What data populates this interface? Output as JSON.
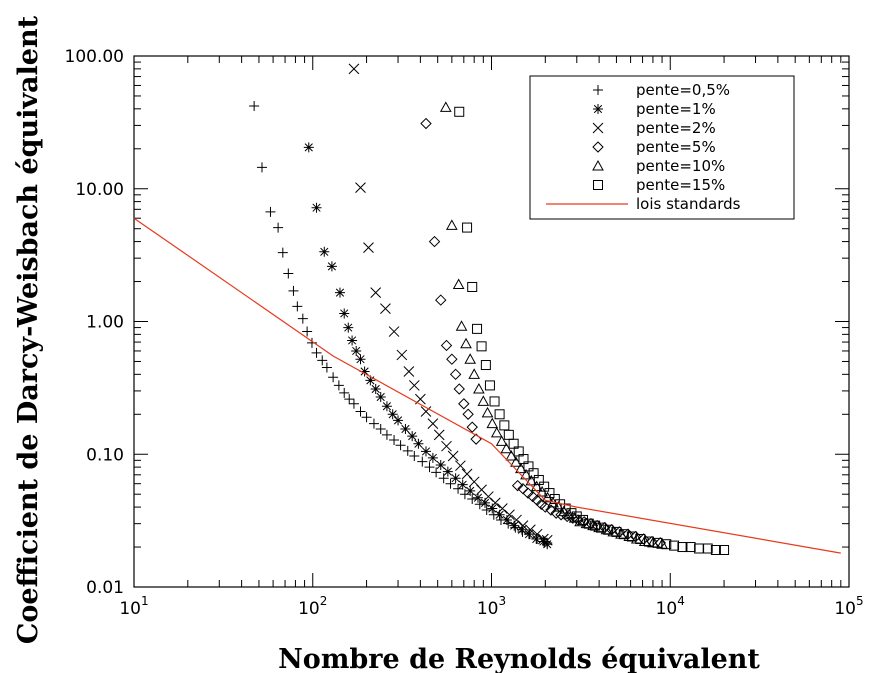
{
  "chart_data": {
    "type": "scatter",
    "xscale": "log",
    "yscale": "log",
    "xlim": [
      10,
      100000
    ],
    "ylim": [
      0.01,
      100
    ],
    "xlabel": "Nombre de Reynolds équivalent",
    "ylabel": "Coefficient de Darcy-Weisbach équivalent",
    "xticks": [
      10,
      100,
      1000,
      10000,
      100000
    ],
    "xtick_labels": [
      {
        "base": "10",
        "exp": "1"
      },
      {
        "base": "10",
        "exp": "2"
      },
      {
        "base": "10",
        "exp": "3"
      },
      {
        "base": "10",
        "exp": "4"
      },
      {
        "base": "10",
        "exp": "5"
      }
    ],
    "yticks": [
      0.01,
      0.1,
      1,
      10,
      100
    ],
    "ytick_labels": [
      "0.01",
      "0.10",
      "1.00",
      "10.00",
      "100.00"
    ],
    "legend_position": "top-right",
    "series": [
      {
        "name": "pente=0,5%",
        "marker": "plus",
        "color": "#000000",
        "points": [
          [
            47,
            42
          ],
          [
            52,
            14.5
          ],
          [
            58,
            6.7
          ],
          [
            64,
            5.1
          ],
          [
            68,
            3.3
          ],
          [
            73,
            2.3
          ],
          [
            78,
            1.7
          ],
          [
            82,
            1.3
          ],
          [
            88,
            1.05
          ],
          [
            93,
            0.84
          ],
          [
            99,
            0.69
          ],
          [
            105,
            0.58
          ],
          [
            113,
            0.51
          ],
          [
            120,
            0.45
          ],
          [
            130,
            0.38
          ],
          [
            140,
            0.33
          ],
          [
            150,
            0.29
          ],
          [
            160,
            0.26
          ],
          [
            170,
            0.24
          ],
          [
            185,
            0.21
          ],
          [
            200,
            0.19
          ],
          [
            220,
            0.17
          ],
          [
            240,
            0.155
          ],
          [
            260,
            0.14
          ],
          [
            285,
            0.128
          ],
          [
            310,
            0.117
          ],
          [
            340,
            0.106
          ],
          [
            370,
            0.097
          ],
          [
            410,
            0.088
          ],
          [
            450,
            0.08
          ],
          [
            490,
            0.073
          ],
          [
            540,
            0.066
          ],
          [
            590,
            0.06
          ],
          [
            650,
            0.055
          ],
          [
            710,
            0.05
          ],
          [
            780,
            0.046
          ],
          [
            860,
            0.042
          ],
          [
            940,
            0.038
          ],
          [
            1030,
            0.035
          ],
          [
            1130,
            0.032
          ],
          [
            1240,
            0.03
          ],
          [
            1360,
            0.028
          ],
          [
            1490,
            0.026
          ],
          [
            1640,
            0.025
          ],
          [
            1800,
            0.023
          ],
          [
            1980,
            0.022
          ],
          [
            2050,
            0.0215
          ]
        ]
      },
      {
        "name": "pente=1%",
        "marker": "asterisk",
        "color": "#000000",
        "points": [
          [
            95,
            20.5
          ],
          [
            105,
            7.2
          ],
          [
            116,
            3.35
          ],
          [
            128,
            2.6
          ],
          [
            142,
            1.65
          ],
          [
            150,
            1.15
          ],
          [
            158,
            0.9
          ],
          [
            166,
            0.72
          ],
          [
            175,
            0.6
          ],
          [
            185,
            0.52
          ],
          [
            195,
            0.42
          ],
          [
            210,
            0.36
          ],
          [
            225,
            0.31
          ],
          [
            240,
            0.27
          ],
          [
            260,
            0.23
          ],
          [
            280,
            0.2
          ],
          [
            300,
            0.18
          ],
          [
            330,
            0.155
          ],
          [
            360,
            0.137
          ],
          [
            390,
            0.12
          ],
          [
            430,
            0.105
          ],
          [
            470,
            0.094
          ],
          [
            520,
            0.083
          ],
          [
            570,
            0.074
          ],
          [
            630,
            0.066
          ],
          [
            690,
            0.059
          ],
          [
            760,
            0.053
          ],
          [
            840,
            0.047
          ],
          [
            920,
            0.043
          ],
          [
            1010,
            0.039
          ],
          [
            1110,
            0.035
          ],
          [
            1220,
            0.032
          ],
          [
            1340,
            0.029
          ],
          [
            1480,
            0.027
          ],
          [
            1620,
            0.025
          ],
          [
            1780,
            0.023
          ],
          [
            1950,
            0.022
          ],
          [
            2050,
            0.021
          ]
        ]
      },
      {
        "name": "pente=2%",
        "marker": "cross",
        "color": "#000000",
        "points": [
          [
            170,
            80
          ],
          [
            185,
            10.2
          ],
          [
            205,
            3.6
          ],
          [
            225,
            1.65
          ],
          [
            255,
            1.25
          ],
          [
            285,
            0.84
          ],
          [
            315,
            0.56
          ],
          [
            345,
            0.42
          ],
          [
            370,
            0.33
          ],
          [
            400,
            0.26
          ],
          [
            430,
            0.21
          ],
          [
            470,
            0.17
          ],
          [
            510,
            0.14
          ],
          [
            560,
            0.115
          ],
          [
            610,
            0.097
          ],
          [
            670,
            0.082
          ],
          [
            730,
            0.071
          ],
          [
            800,
            0.062
          ],
          [
            880,
            0.054
          ],
          [
            960,
            0.048
          ],
          [
            1050,
            0.043
          ],
          [
            1150,
            0.039
          ],
          [
            1260,
            0.035
          ],
          [
            1380,
            0.032
          ],
          [
            1500,
            0.029
          ],
          [
            1650,
            0.027
          ],
          [
            1800,
            0.025
          ],
          [
            1950,
            0.023
          ],
          [
            2050,
            0.0225
          ]
        ]
      },
      {
        "name": "pente=5%",
        "marker": "diamond",
        "color": "#000000",
        "points": [
          [
            430,
            31
          ],
          [
            480,
            4.0
          ],
          [
            520,
            1.45
          ],
          [
            560,
            0.66
          ],
          [
            600,
            0.52
          ],
          [
            630,
            0.4
          ],
          [
            660,
            0.31
          ],
          [
            700,
            0.24
          ],
          [
            740,
            0.2
          ],
          [
            780,
            0.16
          ],
          [
            820,
            0.13
          ],
          [
            1400,
            0.058
          ],
          [
            1500,
            0.055
          ],
          [
            1600,
            0.051
          ],
          [
            1700,
            0.048
          ],
          [
            1800,
            0.045
          ],
          [
            1900,
            0.042
          ],
          [
            2000,
            0.04
          ],
          [
            2150,
            0.038
          ],
          [
            2300,
            0.036
          ],
          [
            2450,
            0.035
          ],
          [
            2650,
            0.034
          ],
          [
            2850,
            0.033
          ],
          [
            3050,
            0.032
          ],
          [
            3300,
            0.031
          ],
          [
            3600,
            0.03
          ],
          [
            3900,
            0.029
          ],
          [
            4300,
            0.028
          ],
          [
            4700,
            0.027
          ],
          [
            5200,
            0.026
          ],
          [
            5800,
            0.025
          ],
          [
            6400,
            0.024
          ],
          [
            7100,
            0.023
          ],
          [
            7900,
            0.022
          ],
          [
            8800,
            0.0215
          ]
        ]
      },
      {
        "name": "pente=10%",
        "marker": "triangle",
        "color": "#000000",
        "points": [
          [
            555,
            41
          ],
          [
            600,
            5.3
          ],
          [
            655,
            1.9
          ],
          [
            680,
            0.92
          ],
          [
            720,
            0.68
          ],
          [
            760,
            0.52
          ],
          [
            800,
            0.4
          ],
          [
            850,
            0.31
          ],
          [
            900,
            0.25
          ],
          [
            950,
            0.205
          ],
          [
            1010,
            0.17
          ],
          [
            1070,
            0.145
          ],
          [
            1140,
            0.125
          ],
          [
            1210,
            0.11
          ],
          [
            1290,
            0.097
          ],
          [
            1370,
            0.087
          ],
          [
            1460,
            0.078
          ],
          [
            1560,
            0.07
          ],
          [
            1670,
            0.063
          ],
          [
            1790,
            0.057
          ],
          [
            1920,
            0.052
          ],
          [
            2060,
            0.047
          ],
          [
            2210,
            0.043
          ],
          [
            2370,
            0.04
          ],
          [
            2540,
            0.037
          ],
          [
            2720,
            0.035
          ],
          [
            2920,
            0.033
          ],
          [
            3130,
            0.031
          ],
          [
            3400,
            0.03
          ],
          [
            3700,
            0.029
          ],
          [
            4000,
            0.028
          ],
          [
            4400,
            0.027
          ],
          [
            4800,
            0.026
          ],
          [
            5300,
            0.025
          ],
          [
            5900,
            0.024
          ],
          [
            6500,
            0.023
          ],
          [
            7200,
            0.022
          ],
          [
            8000,
            0.0215
          ],
          [
            9000,
            0.021
          ]
        ]
      },
      {
        "name": "pente=15%",
        "marker": "square",
        "color": "#000000",
        "points": [
          [
            660,
            38
          ],
          [
            730,
            5.1
          ],
          [
            780,
            1.82
          ],
          [
            830,
            0.88
          ],
          [
            880,
            0.65
          ],
          [
            930,
            0.47
          ],
          [
            980,
            0.33
          ],
          [
            1040,
            0.25
          ],
          [
            1110,
            0.2
          ],
          [
            1180,
            0.165
          ],
          [
            1250,
            0.14
          ],
          [
            1330,
            0.12
          ],
          [
            1420,
            0.105
          ],
          [
            1510,
            0.092
          ],
          [
            1610,
            0.081
          ],
          [
            1720,
            0.072
          ],
          [
            1840,
            0.064
          ],
          [
            1970,
            0.057
          ],
          [
            2110,
            0.051
          ],
          [
            2260,
            0.046
          ],
          [
            2420,
            0.042
          ],
          [
            2600,
            0.039
          ],
          [
            2800,
            0.036
          ],
          [
            3000,
            0.034
          ],
          [
            3250,
            0.032
          ],
          [
            3500,
            0.03
          ],
          [
            3800,
            0.029
          ],
          [
            4100,
            0.028
          ],
          [
            4500,
            0.027
          ],
          [
            5000,
            0.026
          ],
          [
            5500,
            0.025
          ],
          [
            6100,
            0.024
          ],
          [
            6800,
            0.023
          ],
          [
            7600,
            0.022
          ],
          [
            8500,
            0.0215
          ],
          [
            9500,
            0.021
          ],
          [
            10500,
            0.0205
          ],
          [
            11700,
            0.02
          ],
          [
            13000,
            0.02
          ],
          [
            14500,
            0.0195
          ],
          [
            16200,
            0.0195
          ],
          [
            18000,
            0.019
          ],
          [
            20000,
            0.019
          ]
        ]
      },
      {
        "name": "lois standards",
        "type": "line",
        "color": "#e8391c",
        "points": [
          [
            10,
            6.0
          ],
          [
            130,
            0.55
          ],
          [
            1000,
            0.12
          ],
          [
            2000,
            0.045
          ],
          [
            3000,
            0.04
          ],
          [
            90000,
            0.018
          ]
        ]
      }
    ]
  }
}
